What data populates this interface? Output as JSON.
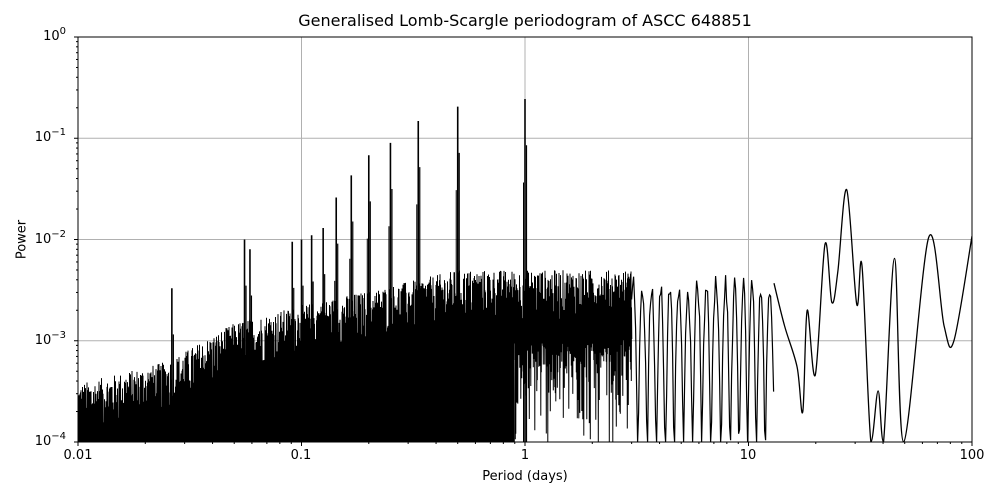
{
  "chart_data": {
    "type": "line",
    "title": "Generalised Lomb-Scargle periodogram of ASCC 648851",
    "xlabel": "Period (days)",
    "ylabel": "Power",
    "xscale": "log",
    "yscale": "log",
    "xlim": [
      0.01,
      100
    ],
    "ylim": [
      0.0001,
      1
    ],
    "grid": true,
    "legend": null,
    "x_ticks": [
      {
        "value": 0.01,
        "label": "0.01"
      },
      {
        "value": 0.1,
        "label": "0.1"
      },
      {
        "value": 1,
        "label": "1"
      },
      {
        "value": 10,
        "label": "10"
      },
      {
        "value": 100,
        "label": "100"
      }
    ],
    "y_ticks": [
      {
        "value": 1,
        "base": "10",
        "exp": "0"
      },
      {
        "value": 0.1,
        "base": "10",
        "exp": "−1"
      },
      {
        "value": 0.01,
        "base": "10",
        "exp": "−2"
      },
      {
        "value": 0.001,
        "base": "10",
        "exp": "−3"
      },
      {
        "value": 0.0001,
        "base": "10",
        "exp": "−4"
      }
    ],
    "line_color": "#000000",
    "grid_color": "#b0b0b0",
    "dominant_peaks": [
      {
        "period": 0.1,
        "power": 0.01
      },
      {
        "period": 0.111,
        "power": 0.011
      },
      {
        "period": 0.125,
        "power": 0.013
      },
      {
        "period": 0.143,
        "power": 0.026
      },
      {
        "period": 0.167,
        "power": 0.043
      },
      {
        "period": 0.2,
        "power": 0.068
      },
      {
        "period": 0.25,
        "power": 0.09
      },
      {
        "period": 0.333,
        "power": 0.148
      },
      {
        "period": 0.5,
        "power": 0.205
      },
      {
        "period": 1.0,
        "power": 0.244
      },
      {
        "period": 0.0556,
        "power": 0.01
      },
      {
        "period": 0.0588,
        "power": 0.008
      },
      {
        "period": 0.0909,
        "power": 0.0095
      },
      {
        "period": 0.0263,
        "power": 0.0033
      },
      {
        "period": 27.5,
        "power": 0.031
      }
    ],
    "noise_floor": [
      {
        "period": 0.01,
        "power": 0.0003
      },
      {
        "period": 0.025,
        "power": 0.0005
      },
      {
        "period": 0.05,
        "power": 0.0012
      },
      {
        "period": 0.1,
        "power": 0.0018
      },
      {
        "period": 0.2,
        "power": 0.0025
      },
      {
        "period": 0.5,
        "power": 0.004
      },
      {
        "period": 1.0,
        "power": 0.004
      },
      {
        "period": 3.0,
        "power": 0.004
      }
    ],
    "smooth_tail": [
      {
        "period": 13.0,
        "power": 0.0037
      },
      {
        "period": 14.5,
        "power": 0.0014
      },
      {
        "period": 16.5,
        "power": 0.00055
      },
      {
        "period": 17.5,
        "power": 0.0002
      },
      {
        "period": 18.3,
        "power": 0.002
      },
      {
        "period": 19.9,
        "power": 0.00046
      },
      {
        "period": 22.0,
        "power": 0.009
      },
      {
        "period": 23.6,
        "power": 0.0024
      },
      {
        "period": 25.1,
        "power": 0.0048
      },
      {
        "period": 27.5,
        "power": 0.031
      },
      {
        "period": 30.5,
        "power": 0.0023
      },
      {
        "period": 32.2,
        "power": 0.0055
      },
      {
        "period": 35.3,
        "power": 0.0001
      },
      {
        "period": 38.0,
        "power": 0.00032
      },
      {
        "period": 40.2,
        "power": 0.0001
      },
      {
        "period": 45.0,
        "power": 0.0065
      },
      {
        "period": 49.5,
        "power": 0.0001
      },
      {
        "period": 64.0,
        "power": 0.0105
      },
      {
        "period": 75.0,
        "power": 0.0014
      },
      {
        "period": 83.0,
        "power": 0.001
      },
      {
        "period": 100.0,
        "power": 0.0108
      }
    ]
  }
}
